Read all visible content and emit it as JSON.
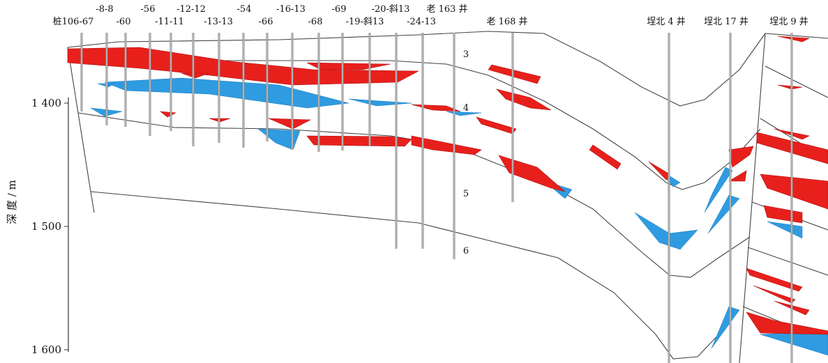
{
  "wells_top_row": [
    "-8-8",
    "-56",
    "-12-12",
    "-54",
    "-16-13",
    "-69",
    "-20-斜13",
    "老 163 井"
  ],
  "wells_bottom_row": [
    "桩106-67",
    "-60",
    "-11-11",
    "-13-13",
    "-66",
    "-68",
    "-19-斜13",
    "-24-13",
    "老 168 井",
    "埕北 4 井",
    "埕北 17 井",
    "埕北 9 井"
  ],
  "layers": [
    "3",
    "4",
    "5",
    "6"
  ],
  "y_axis": {
    "label": "深 度 / m",
    "ticks": [
      "1 400",
      "1 500",
      "1 600"
    ]
  }
}
